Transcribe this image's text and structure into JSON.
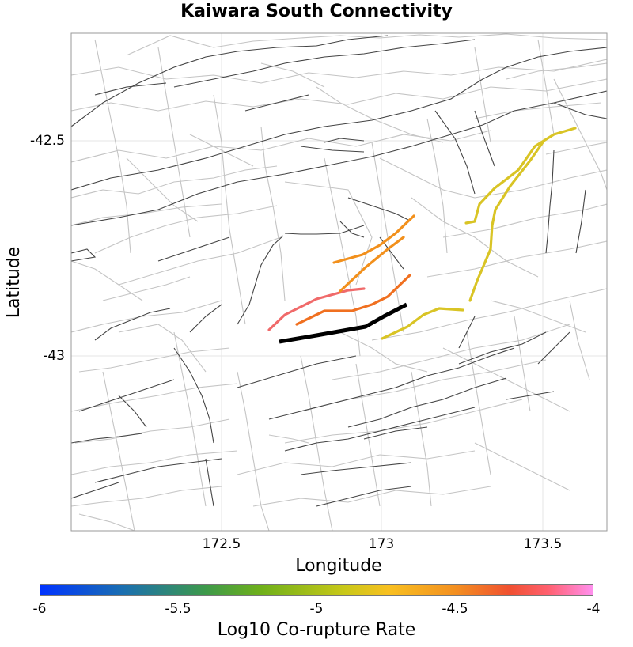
{
  "title": "Kaiwara South Connectivity",
  "axes": {
    "xlabel": "Longitude",
    "ylabel": "Latitude",
    "x_ticks": [
      "172.5",
      "173",
      "173.5"
    ],
    "y_ticks": [
      "-42.5",
      "-43"
    ]
  },
  "colorbar": {
    "label": "Log10 Co-rupture Rate",
    "ticks": [
      "-6",
      "-5.5",
      "-5",
      "-4.5",
      "-4"
    ],
    "range": [
      -6,
      -4
    ]
  },
  "colors": {
    "selected_fault": "#000000",
    "fault_trace": "#444444",
    "section_outline": "#c4c4c4",
    "grid": "#e6e6e6"
  }
}
